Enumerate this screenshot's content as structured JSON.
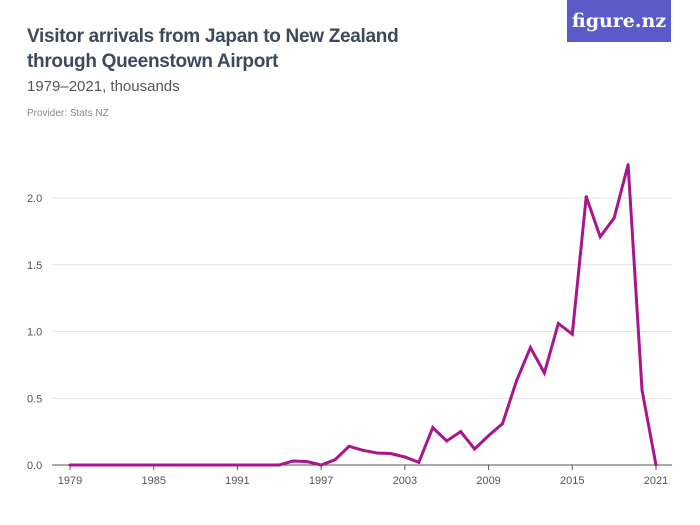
{
  "logo": "figure.nz",
  "chart_data": {
    "type": "line",
    "title": "Visitor arrivals from Japan to New Zealand through Queenstown Airport",
    "subtitle": "1979–2021, thousands",
    "provider": "Provider: Stats NZ",
    "xlim": [
      1979,
      2021
    ],
    "ylim": [
      0,
      2.0
    ],
    "x_ticks": [
      "1979",
      "1985",
      "1991",
      "1997",
      "2003",
      "2009",
      "2015",
      "2021"
    ],
    "y_ticks": [
      "0.0",
      "0.5",
      "1.0",
      "1.5",
      "2.0"
    ],
    "grid": "horizontal",
    "color": "#a8168f",
    "x": [
      1979,
      1980,
      1981,
      1982,
      1983,
      1984,
      1985,
      1986,
      1987,
      1988,
      1989,
      1990,
      1991,
      1992,
      1993,
      1994,
      1995,
      1996,
      1997,
      1998,
      1999,
      2000,
      2001,
      2002,
      2003,
      2004,
      2005,
      2006,
      2007,
      2008,
      2009,
      2010,
      2011,
      2012,
      2013,
      2014,
      2015,
      2016,
      2017,
      2018,
      2019,
      2020,
      2021
    ],
    "values": [
      0,
      0,
      0,
      0,
      0,
      0,
      0,
      0,
      0,
      0,
      0,
      0,
      0,
      0,
      0,
      0,
      0.03,
      0.025,
      0.0,
      0.04,
      0.14,
      0.11,
      0.09,
      0.085,
      0.06,
      0.02,
      0.28,
      0.18,
      0.25,
      0.12,
      0.22,
      0.31,
      0.63,
      0.88,
      0.69,
      1.06,
      0.98,
      2.01,
      1.71,
      1.85,
      2.25,
      0.56,
      0.0
    ]
  }
}
